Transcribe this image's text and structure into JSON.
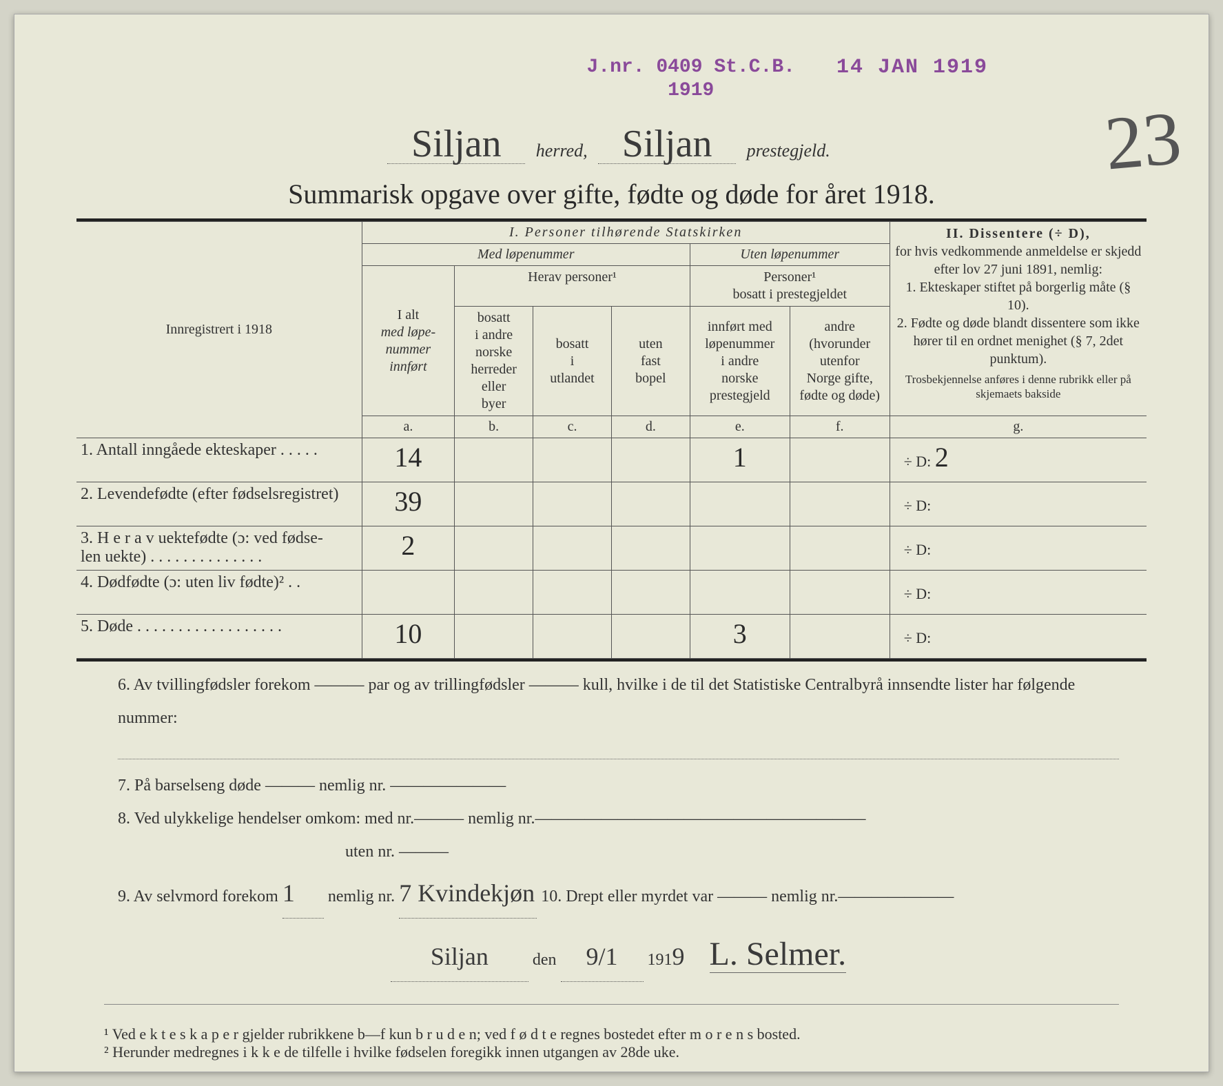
{
  "stamps": {
    "jnr_line1": "J.nr. 0409 St.C.B.",
    "jnr_line2": "1919",
    "date": "14 JAN 1919"
  },
  "header": {
    "herred_value": "Siljan",
    "herred_label": "herred,",
    "prestegjeld_value": "Siljan",
    "prestegjeld_label": "prestegjeld.",
    "page_number": "23"
  },
  "title": "Summarisk opgave over gifte, fødte og døde for året 1918.",
  "table_headers": {
    "section1": "I.  Personer tilhørende Statskirken",
    "med_lope": "Med løpenummer",
    "uten_lope": "Uten løpenummer",
    "innreg": "Innregistrert i 1918",
    "i_alt": "I alt",
    "med_lope_sub": "med løpe-\nnummer\ninnført",
    "herav": "Herav personer¹",
    "personer_bosatt": "Personer¹\nbosatt i prestegjeldet",
    "col_b": "bosatt\ni andre\nnorske\nherreder\neller\nbyer",
    "col_c": "bosatt\ni\nutlandet",
    "col_d": "uten\nfast\nbopel",
    "col_e": "innført med\nløpenummer\ni andre\nnorske\nprestegjeld",
    "col_f": "andre\n(hvorunder\nutenfor\nNorge gifte,\nfødte og døde)",
    "letters": {
      "a": "a.",
      "b": "b.",
      "c": "c.",
      "d": "d.",
      "e": "e.",
      "f": "f.",
      "g": "g."
    },
    "section2_title": "II.  Dissentere (÷ D),",
    "section2_body": "for hvis vedkommende anmeldelse er skjedd efter lov 27 juni 1891, nemlig:\n1. Ekteskaper stiftet på borgerlig måte (§ 10).\n2. Fødte og døde blandt dissentere som ikke hører til en ordnet menighet (§ 7, 2det punktum).",
    "section2_footer": "Trosbekjennelse anføres i denne rubrikk eller på skjemaets bakside"
  },
  "rows": [
    {
      "label": "1. Antall inngåede ekteskaper . . . . .",
      "a": "14",
      "b": "",
      "c": "",
      "d": "",
      "e": "1",
      "f": "",
      "g": "÷ D:  2"
    },
    {
      "label": "2. Levendefødte (efter fødselsregistret)",
      "a": "39",
      "b": "",
      "c": "",
      "d": "",
      "e": "",
      "f": "",
      "g": "÷ D:"
    },
    {
      "label": "3. H e r a v uektefødte (ɔ: ved fødse-\n    len uekte) . . . . . . . . . . . . . .",
      "a": "2",
      "b": "",
      "c": "",
      "d": "",
      "e": "",
      "f": "",
      "g": "÷ D:"
    },
    {
      "label": "4. Dødfødte (ɔ: uten liv fødte)² . .",
      "a": "",
      "b": "",
      "c": "",
      "d": "",
      "e": "",
      "f": "",
      "g": "÷ D:"
    },
    {
      "label": "5. Døde . . . . . . . . . . . . . . . . . .",
      "a": "10",
      "b": "",
      "c": "",
      "d": "",
      "e": "3",
      "f": "",
      "g": "÷ D:"
    }
  ],
  "questions": {
    "q6": "6. Av tvillingfødsler forekom ——— par og av trillingfødsler ——— kull, hvilke i de til det Statistiske Centralbyrå innsendte lister har følgende nummer:",
    "q7": "7. På barselseng døde ——— nemlig nr. ———————",
    "q8": "8. Ved ulykkelige hendelser omkom:  med nr.——— nemlig nr.————————————————————",
    "q8b": "uten nr. ———",
    "q9_prefix": "9. Av selvmord forekom",
    "q9_count": "1",
    "q9_mid": "nemlig nr.",
    "q9_detail": "7 Kvindekjøn",
    "q10": "10.  Drept eller myrdet var ——— nemlig nr.———————"
  },
  "signature": {
    "place": "Siljan",
    "den": "den",
    "date": "9/1",
    "year_prefix": "191",
    "year_suffix": "9",
    "name": "L. Selmer."
  },
  "footnotes": {
    "f1": "¹   Ved e k t e s k a p e r gjelder rubrikkene b—f kun b r u d e n; ved f ø d t e regnes bostedet efter m o r e n s bosted.",
    "f2": "²   Herunder medregnes i k k e de tilfelle i hvilke fødselen foregikk innen utgangen av 28de uke."
  },
  "colors": {
    "paper": "#e8e8d8",
    "ink": "#2a2a2a",
    "stamp": "#8a4a9a",
    "rule": "#222222"
  }
}
